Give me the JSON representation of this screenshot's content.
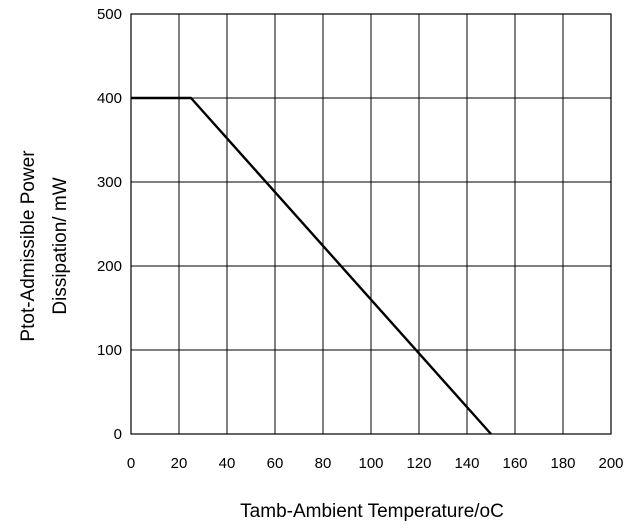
{
  "chart_data": {
    "type": "line",
    "title": "",
    "xlabel": "Tamb-Ambient Temperature/oC",
    "ylabel_lines": [
      "Ptot-Admissible Power",
      "Dissipation/ mW"
    ],
    "xlim": [
      0,
      200
    ],
    "ylim": [
      0,
      500
    ],
    "x_ticks": [
      0,
      20,
      40,
      60,
      80,
      100,
      120,
      140,
      160,
      180,
      200
    ],
    "x_tick_labels": [
      "0",
      "20",
      "40",
      "60",
      "80",
      "100",
      "120",
      "140",
      "160",
      "180",
      "200"
    ],
    "y_ticks": [
      0,
      100,
      200,
      300,
      400,
      500
    ],
    "y_tick_labels": [
      "0",
      "100",
      "200",
      "300",
      "400",
      "500"
    ],
    "grid": true,
    "legend": "none",
    "series": [
      {
        "x": [
          0,
          25,
          150
        ],
        "y": [
          400,
          400,
          0
        ],
        "color": "#000000"
      }
    ]
  }
}
